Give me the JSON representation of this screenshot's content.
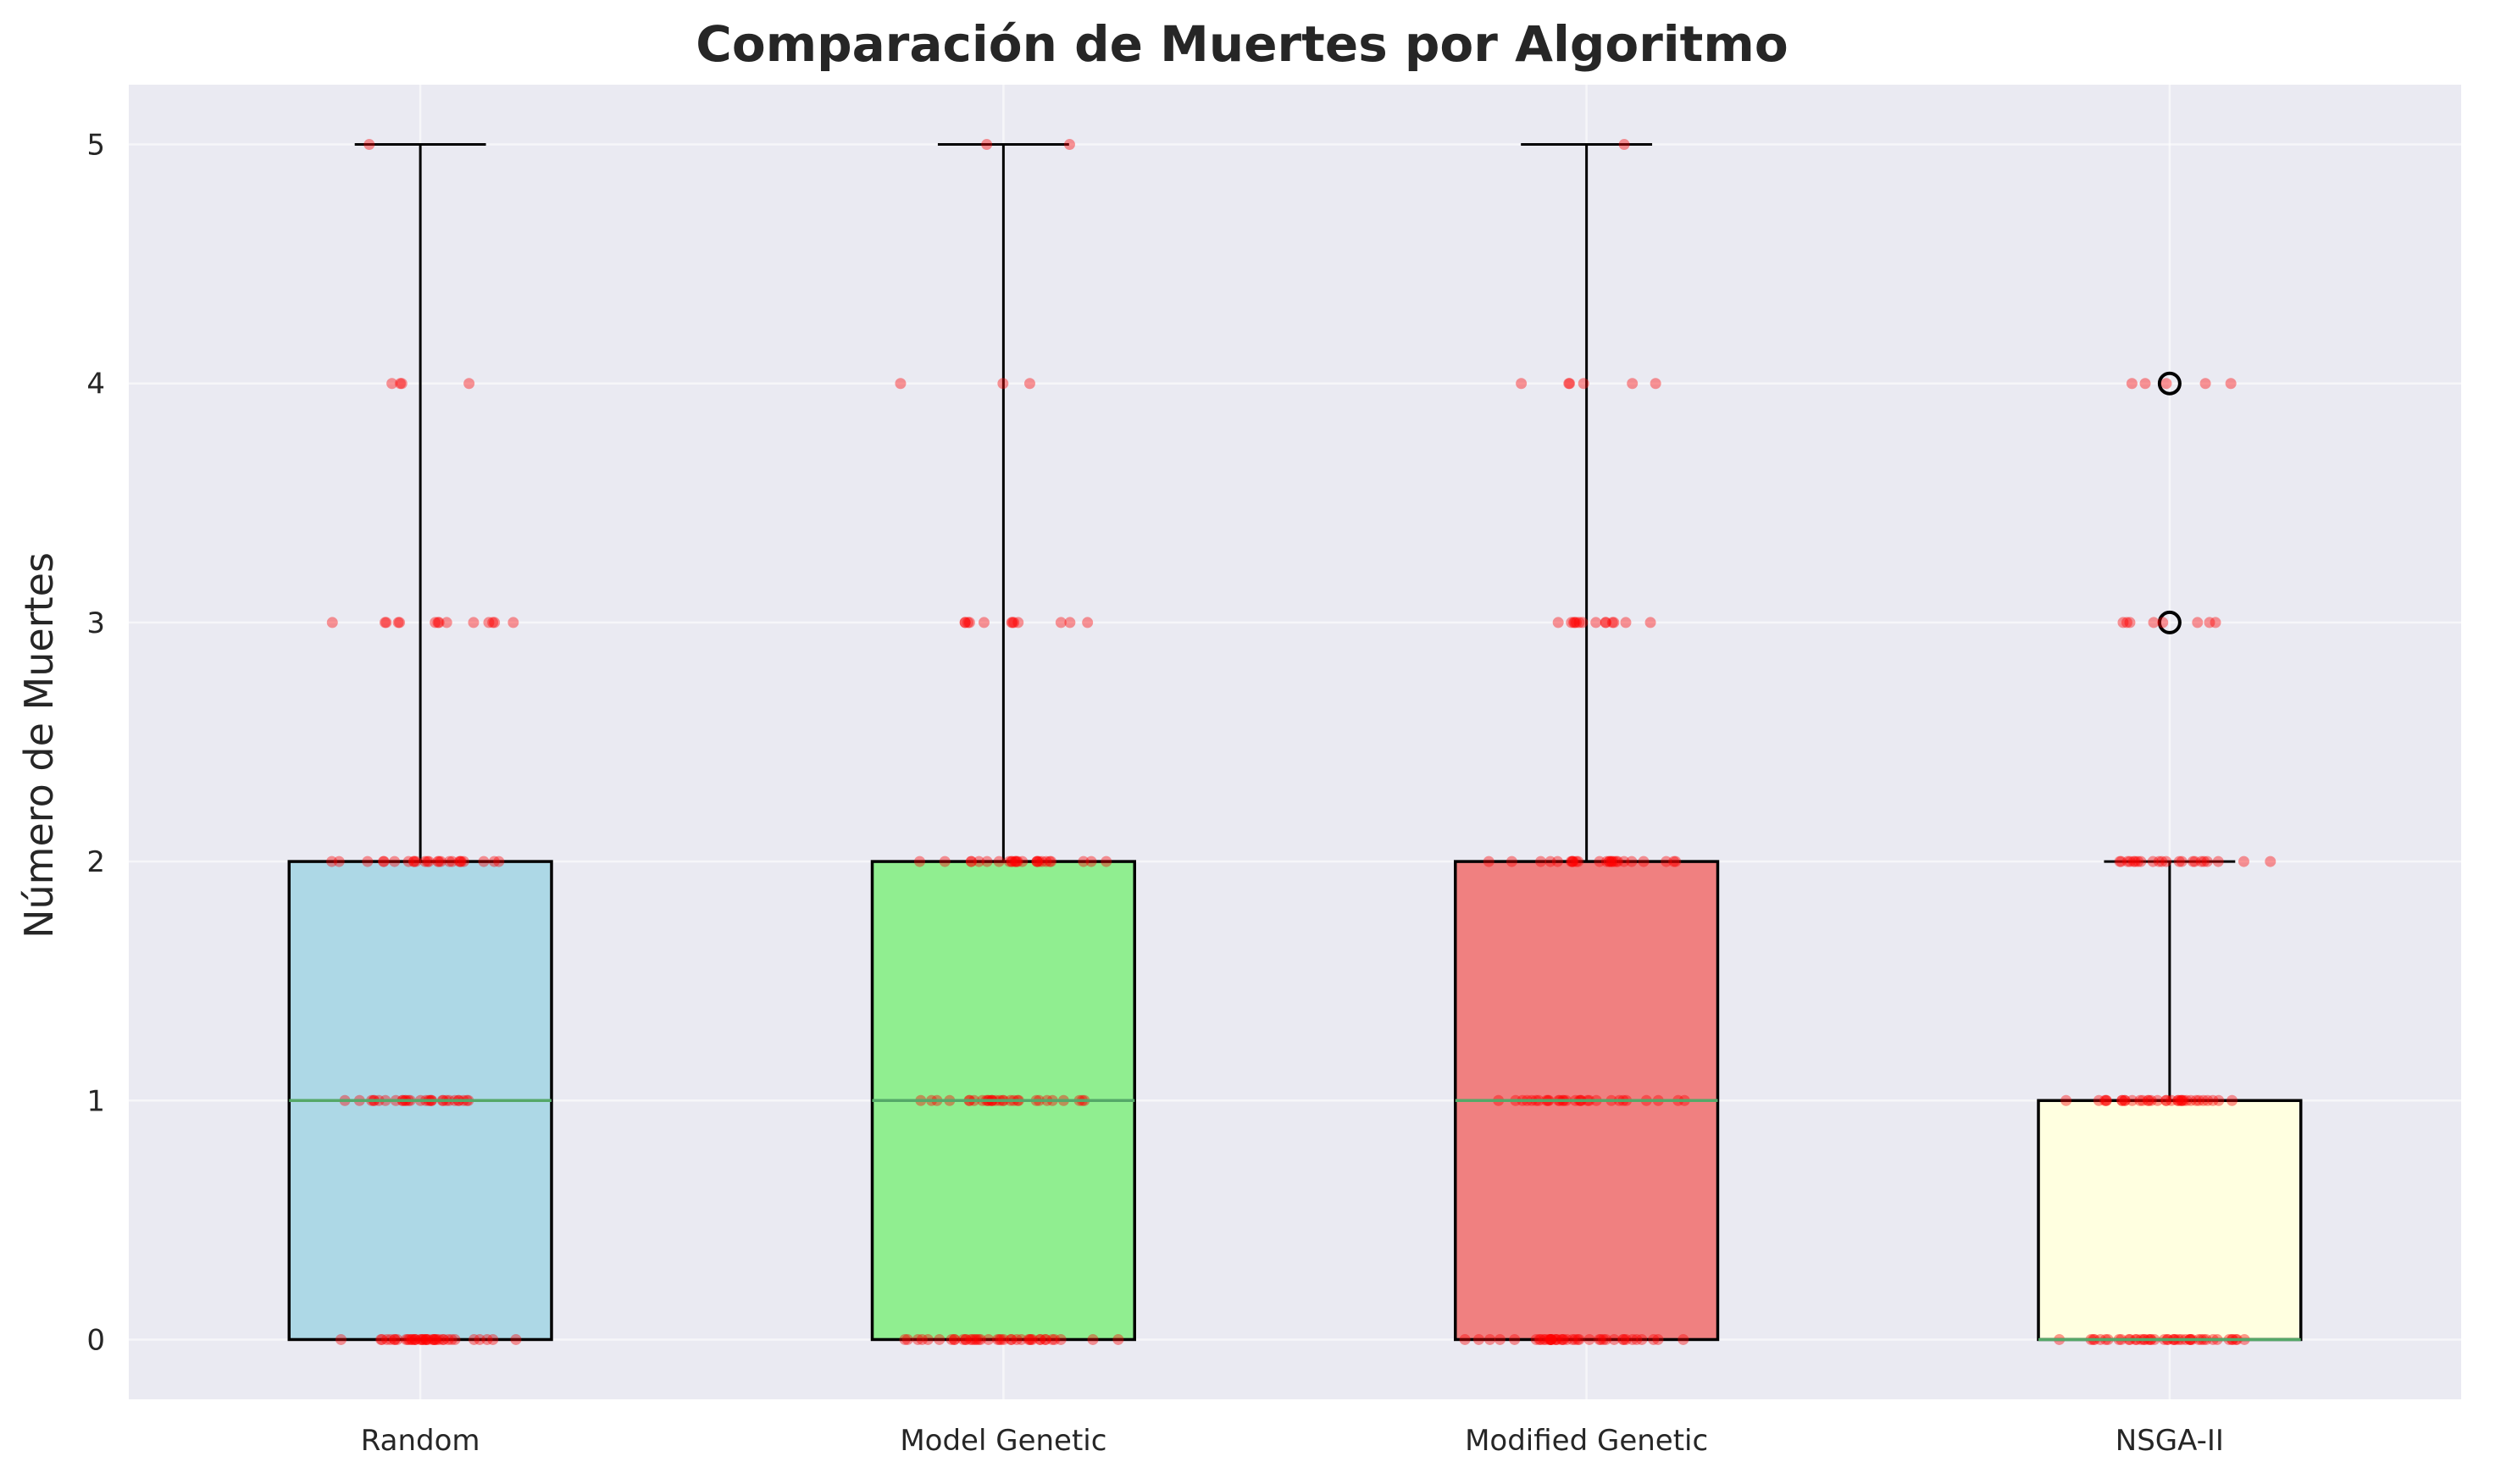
{
  "chart_data": {
    "type": "box",
    "title": "Comparación de Muertes por Algoritmo",
    "xlabel": "",
    "ylabel": "Número de Muertes",
    "ylim": [
      -0.25,
      5.25
    ],
    "yticks": [
      0,
      1,
      2,
      3,
      4,
      5
    ],
    "grid": true,
    "categories": [
      "Random",
      "Model Genetic",
      "Modified Genetic",
      "NSGA-II"
    ],
    "boxes": [
      {
        "category": "Random",
        "color": "#add8e6",
        "whisker_low": 0,
        "q1": 0,
        "median": 1,
        "q3": 2,
        "whisker_high": 5,
        "outliers": []
      },
      {
        "category": "Model Genetic",
        "color": "#90ee90",
        "whisker_low": 0,
        "q1": 0,
        "median": 1,
        "q3": 2,
        "whisker_high": 5,
        "outliers": []
      },
      {
        "category": "Modified Genetic",
        "color": "#f08080",
        "whisker_low": 0,
        "q1": 0,
        "median": 1,
        "q3": 2,
        "whisker_high": 5,
        "outliers": []
      },
      {
        "category": "NSGA-II",
        "color": "#ffffe0",
        "whisker_low": 0,
        "q1": 0,
        "median": 0,
        "q3": 1,
        "whisker_high": 2,
        "outliers": [
          3,
          4
        ]
      }
    ],
    "points": [
      {
        "category": "Random",
        "counts": {
          "0": 40,
          "1": 30,
          "2": 25,
          "3": 14,
          "4": 4,
          "5": 1
        }
      },
      {
        "category": "Model Genetic",
        "counts": {
          "0": 40,
          "1": 30,
          "2": 26,
          "3": 12,
          "4": 3,
          "5": 2
        }
      },
      {
        "category": "Modified Genetic",
        "counts": {
          "0": 42,
          "1": 30,
          "2": 26,
          "3": 14,
          "4": 6,
          "5": 1
        }
      },
      {
        "category": "NSGA-II",
        "counts": {
          "0": 45,
          "1": 34,
          "2": 22,
          "3": 8,
          "4": 5,
          "5": 0
        }
      }
    ],
    "point_color": "#ff0000",
    "median_color": "#55a868",
    "background": "#eaeaf2"
  }
}
